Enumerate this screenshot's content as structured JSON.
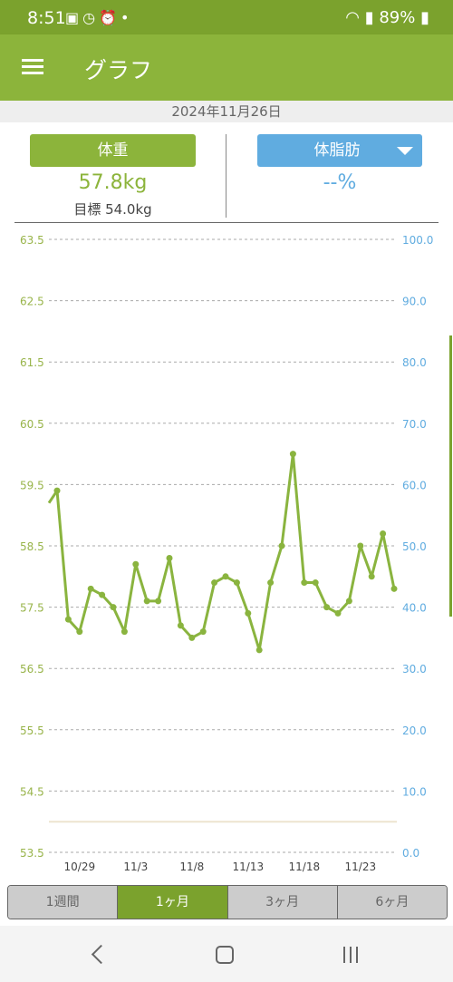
{
  "status_bar": {
    "time": "8:51",
    "battery": "89%"
  },
  "app_bar": {
    "title": "グラフ"
  },
  "date": "2024年11月26日",
  "weight": {
    "label": "体重",
    "value": "57.8kg",
    "target": "目標 54.0kg"
  },
  "body_fat": {
    "label": "体脂肪",
    "value": "--%"
  },
  "range_tabs": [
    "1週間",
    "1ヶ月",
    "3ヶ月",
    "6ヶ月"
  ],
  "selected_range": "1ヶ月",
  "colors": {
    "accent": "#8cb43b",
    "weight_line": "#8ab43f",
    "fat_axis": "#60ace0",
    "target_line": "#ede4cf"
  },
  "chart_data": {
    "type": "line",
    "x": [
      "10/27",
      "10/28",
      "10/29",
      "10/30",
      "10/31",
      "11/1",
      "11/2",
      "11/3",
      "11/4",
      "11/5",
      "11/6",
      "11/7",
      "11/8",
      "11/9",
      "11/10",
      "11/11",
      "11/12",
      "11/13",
      "11/14",
      "11/15",
      "11/16",
      "11/17",
      "11/18",
      "11/19",
      "11/20",
      "11/21",
      "11/22",
      "11/23",
      "11/24",
      "11/25",
      "11/26"
    ],
    "x_tick_labels": [
      "10/29",
      "11/3",
      "11/8",
      "11/13",
      "11/18",
      "11/23"
    ],
    "series": [
      {
        "axis": "left",
        "values": [
          59.4,
          57.3,
          57.1,
          57.8,
          57.7,
          57.5,
          57.1,
          58.2,
          57.6,
          57.6,
          58.3,
          57.2,
          57.0,
          57.1,
          57.9,
          58.0,
          57.9,
          57.4,
          56.8,
          57.9,
          58.5,
          60.0,
          57.9,
          57.9,
          57.5,
          57.4,
          57.6,
          58.5,
          58.0,
          58.7,
          57.8
        ]
      }
    ],
    "incoming_value": 59.2,
    "target_value": 54.0,
    "y_left": {
      "ticks": [
        "63.5",
        "62.5",
        "61.5",
        "60.5",
        "59.5",
        "58.5",
        "57.5",
        "56.5",
        "55.5",
        "54.5",
        "53.5"
      ],
      "ylim": [
        53.5,
        63.5
      ]
    },
    "y_right": {
      "ticks": [
        "100.0",
        "90.0",
        "80.0",
        "70.0",
        "60.0",
        "50.0",
        "40.0",
        "30.0",
        "20.0",
        "10.0",
        "0.0"
      ],
      "ylim": [
        0,
        100
      ]
    },
    "grid": true
  }
}
